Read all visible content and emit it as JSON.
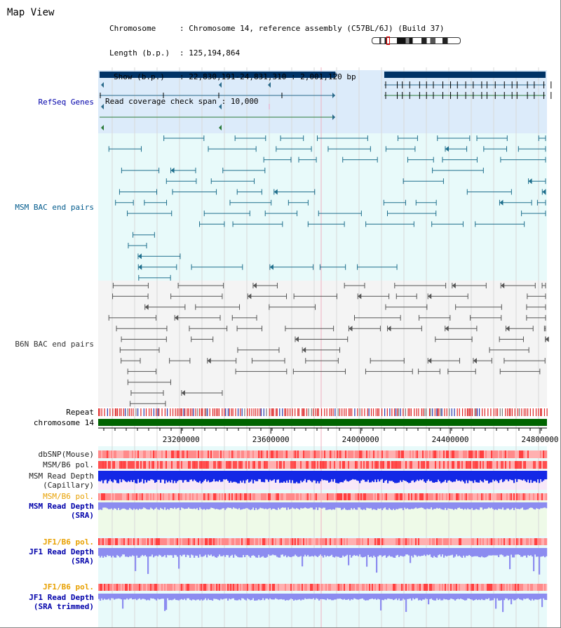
{
  "title": "Map View",
  "info": {
    "chromosome_label": "Chromosome",
    "chromosome_value": ": Chromosome 14, reference assembly (C57BL/6J) (Build 37)",
    "length_label": "Length (b.p.)",
    "length_value": ": 125,194,864",
    "show_label": "Show (b.p.)",
    "show_value": ": 22,830,191-24,831,310 : 2,001,120 bp",
    "coverage_label": "Read coverage check span",
    "coverage_value": ": 10,000"
  },
  "tracks": {
    "refseq": "RefSeq Genes",
    "msm_bac": "MSM BAC end pairs",
    "b6n_bac": "B6N BAC end pairs",
    "repeat": "Repeat",
    "chromosome": "chromosome 14",
    "dbsnp": "dbSNP(Mouse)",
    "msm_b6_pol": "MSM/B6 pol.",
    "msm_depth_cap_1": "MSM Read Depth",
    "msm_depth_cap_2": "(Capillary)",
    "msm_b6_pol2": "MSM/B6 pol.",
    "msm_depth_sra_1": "MSM Read Depth",
    "msm_depth_sra_2": "(SRA)",
    "jf1_pol": "JF1/B6 pol.",
    "jf1_depth_sra_1": "JF1 Read Depth",
    "jf1_depth_sra_2": "(SRA)",
    "jf1_pol2": "JF1/B6 pol.",
    "jf1_depth_trim_1": "JF1 Read Depth",
    "jf1_depth_trim_2": "(SRA trimmed)"
  },
  "axis": {
    "ticks": [
      "23200000",
      "23600000",
      "24000000",
      "24400000",
      "24800000"
    ],
    "tick_values": [
      23200000,
      23600000,
      24000000,
      24400000,
      24800000
    ],
    "range": [
      22830191,
      24831310
    ]
  },
  "colors": {
    "refseq_bg": "#dcebfa",
    "track_bg": "#e8fafa",
    "b6n_bg": "#f4f4f4",
    "gene_dark": "#003366",
    "refseq_label": "#0000aa",
    "msm_label": "#005a8c",
    "msm_pair": "#1e6e8c",
    "b6n_pair": "#555555",
    "chrom": "#006400",
    "snp": "#ff8a8a",
    "pol": "#ff5050",
    "depth_cap": "#1428e6",
    "depth_sra": "#8c8cf0",
    "orange_label": "#e8a000"
  }
}
